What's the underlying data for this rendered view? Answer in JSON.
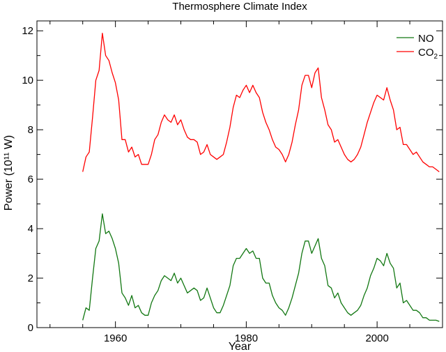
{
  "chart_data": {
    "type": "line",
    "title": "Thermosphere Climate Index",
    "xlabel": "Year",
    "ylabel": "Power (10¹¹ W)",
    "xlim": [
      1948,
      2010
    ],
    "ylim": [
      0,
      12.4
    ],
    "x_ticks": [
      1960,
      1980,
      2000
    ],
    "x_tick_labels": [
      "1960",
      "1980",
      "2000"
    ],
    "y_ticks": [
      0,
      2,
      4,
      6,
      8,
      10,
      12
    ],
    "y_tick_labels": [
      "0",
      "2",
      "4",
      "6",
      "8",
      "10",
      "12"
    ],
    "grid": false,
    "legend": {
      "position": "top-right"
    },
    "series": [
      {
        "name": "NO",
        "label_main": "NO",
        "label_sub": "",
        "color": "#117711",
        "x": [
          1955.0,
          1955.5,
          1956.0,
          1956.5,
          1957.0,
          1957.5,
          1958.0,
          1958.5,
          1959.0,
          1959.5,
          1960.0,
          1960.5,
          1961.0,
          1961.5,
          1962.0,
          1962.5,
          1963.0,
          1963.5,
          1964.0,
          1964.5,
          1965.0,
          1965.5,
          1966.0,
          1966.5,
          1967.0,
          1967.5,
          1968.0,
          1968.5,
          1969.0,
          1969.5,
          1970.0,
          1970.5,
          1971.0,
          1971.5,
          1972.0,
          1972.5,
          1973.0,
          1973.5,
          1974.0,
          1974.5,
          1975.0,
          1975.5,
          1976.0,
          1976.5,
          1977.0,
          1977.5,
          1978.0,
          1978.5,
          1979.0,
          1979.5,
          1980.0,
          1980.5,
          1981.0,
          1981.5,
          1982.0,
          1982.5,
          1983.0,
          1983.5,
          1984.0,
          1984.5,
          1985.0,
          1985.5,
          1986.0,
          1986.5,
          1987.0,
          1987.5,
          1988.0,
          1988.5,
          1989.0,
          1989.5,
          1990.0,
          1990.5,
          1991.0,
          1991.5,
          1992.0,
          1992.5,
          1993.0,
          1993.5,
          1994.0,
          1994.5,
          1995.0,
          1995.5,
          1996.0,
          1996.5,
          1997.0,
          1997.5,
          1998.0,
          1998.5,
          1999.0,
          1999.5,
          2000.0,
          2000.5,
          2001.0,
          2001.5,
          2002.0,
          2002.5,
          2003.0,
          2003.5,
          2004.0,
          2004.5,
          2005.0,
          2005.5,
          2006.0,
          2006.5,
          2007.0,
          2007.5,
          2008.0,
          2008.5,
          2009.0,
          2009.5
        ],
        "values": [
          0.3,
          0.8,
          0.7,
          2.0,
          3.2,
          3.5,
          4.6,
          3.8,
          3.9,
          3.6,
          3.2,
          2.6,
          1.4,
          1.2,
          0.9,
          1.3,
          0.8,
          0.9,
          0.6,
          0.5,
          0.5,
          1.0,
          1.3,
          1.5,
          1.9,
          2.1,
          2.0,
          1.9,
          2.2,
          1.8,
          2.0,
          1.7,
          1.4,
          1.5,
          1.6,
          1.5,
          1.1,
          1.2,
          1.6,
          1.2,
          0.8,
          0.6,
          0.6,
          0.9,
          1.3,
          1.7,
          2.5,
          2.8,
          2.8,
          3.0,
          3.2,
          3.0,
          3.1,
          2.8,
          2.8,
          2.0,
          1.8,
          1.8,
          1.3,
          1.0,
          0.8,
          0.7,
          0.5,
          0.8,
          1.2,
          1.7,
          2.2,
          3.0,
          3.5,
          3.5,
          3.0,
          3.3,
          3.6,
          2.8,
          2.5,
          1.7,
          1.6,
          1.2,
          1.4,
          1.0,
          0.8,
          0.6,
          0.5,
          0.6,
          0.7,
          0.9,
          1.3,
          1.6,
          2.1,
          2.4,
          2.8,
          2.7,
          2.5,
          3.0,
          2.6,
          2.4,
          1.6,
          1.8,
          1.0,
          1.1,
          0.9,
          0.7,
          0.7,
          0.6,
          0.4,
          0.4,
          0.3,
          0.3,
          0.3,
          0.25
        ]
      },
      {
        "name": "CO2",
        "label_main": "CO",
        "label_sub": "2",
        "color": "#ff0000",
        "x": [
          1955.0,
          1955.5,
          1956.0,
          1956.5,
          1957.0,
          1957.5,
          1958.0,
          1958.5,
          1959.0,
          1959.5,
          1960.0,
          1960.5,
          1961.0,
          1961.5,
          1962.0,
          1962.5,
          1963.0,
          1963.5,
          1964.0,
          1964.5,
          1965.0,
          1965.5,
          1966.0,
          1966.5,
          1967.0,
          1967.5,
          1968.0,
          1968.5,
          1969.0,
          1969.5,
          1970.0,
          1970.5,
          1971.0,
          1971.5,
          1972.0,
          1972.5,
          1973.0,
          1973.5,
          1974.0,
          1974.5,
          1975.0,
          1975.5,
          1976.0,
          1976.5,
          1977.0,
          1977.5,
          1978.0,
          1978.5,
          1979.0,
          1979.5,
          1980.0,
          1980.5,
          1981.0,
          1981.5,
          1982.0,
          1982.5,
          1983.0,
          1983.5,
          1984.0,
          1984.5,
          1985.0,
          1985.5,
          1986.0,
          1986.5,
          1987.0,
          1987.5,
          1988.0,
          1988.5,
          1989.0,
          1989.5,
          1990.0,
          1990.5,
          1991.0,
          1991.5,
          1992.0,
          1992.5,
          1993.0,
          1993.5,
          1994.0,
          1994.5,
          1995.0,
          1995.5,
          1996.0,
          1996.5,
          1997.0,
          1997.5,
          1998.0,
          1998.5,
          1999.0,
          1999.5,
          2000.0,
          2000.5,
          2001.0,
          2001.5,
          2002.0,
          2002.5,
          2003.0,
          2003.5,
          2004.0,
          2004.5,
          2005.0,
          2005.5,
          2006.0,
          2006.5,
          2007.0,
          2007.5,
          2008.0,
          2008.5,
          2009.0,
          2009.5
        ],
        "values": [
          6.3,
          6.9,
          7.1,
          8.5,
          10.0,
          10.4,
          11.9,
          11.0,
          10.8,
          10.3,
          9.9,
          9.2,
          7.6,
          7.6,
          7.1,
          7.3,
          6.9,
          7.0,
          6.6,
          6.6,
          6.6,
          7.0,
          7.6,
          7.8,
          8.3,
          8.6,
          8.4,
          8.3,
          8.6,
          8.2,
          8.4,
          8.0,
          7.7,
          7.6,
          7.6,
          7.5,
          7.0,
          7.1,
          7.4,
          7.0,
          6.9,
          6.8,
          6.9,
          7.0,
          7.5,
          8.1,
          8.9,
          9.4,
          9.3,
          9.6,
          9.8,
          9.5,
          9.8,
          9.5,
          9.3,
          8.7,
          8.3,
          8.0,
          7.6,
          7.3,
          7.2,
          7.0,
          6.7,
          7.0,
          7.5,
          8.2,
          8.8,
          9.8,
          10.2,
          10.2,
          9.7,
          10.3,
          10.5,
          9.3,
          8.8,
          8.2,
          8.0,
          7.5,
          7.6,
          7.3,
          7.0,
          6.8,
          6.7,
          6.8,
          7.0,
          7.3,
          7.8,
          8.3,
          8.7,
          9.1,
          9.4,
          9.3,
          9.2,
          9.7,
          9.2,
          8.8,
          8.0,
          8.1,
          7.4,
          7.4,
          7.2,
          7.0,
          7.1,
          6.9,
          6.7,
          6.6,
          6.5,
          6.5,
          6.4,
          6.3
        ]
      }
    ]
  }
}
